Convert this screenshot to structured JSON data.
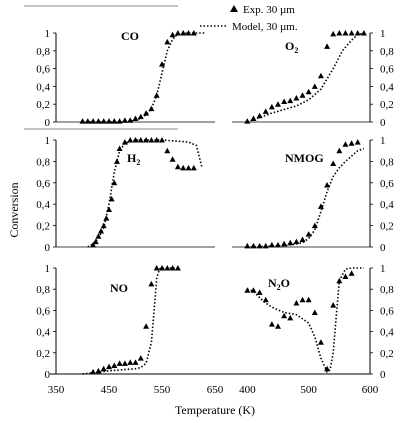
{
  "figure": {
    "y_axis_label": "Conversion",
    "x_axis_label": "Temperature (K)",
    "legend": {
      "exp_label": "Exp. 30 µm",
      "model_label": "Model, 30 µm."
    }
  },
  "chart_data": [
    {
      "type": "scatter",
      "panel": "top-left",
      "title": "CO",
      "xlim": [
        350,
        650
      ],
      "ylim": [
        0,
        1
      ],
      "y_ticks": [
        "0",
        "0,2",
        "0,4",
        "0,6",
        "0,8",
        "1"
      ],
      "series": [
        {
          "name": "Exp. 30 µm",
          "style": "marker-triangle",
          "x": [
            400,
            410,
            420,
            430,
            440,
            450,
            460,
            470,
            480,
            490,
            500,
            510,
            520,
            530,
            540,
            550,
            560,
            570,
            580,
            590,
            600,
            610
          ],
          "y": [
            0.01,
            0.01,
            0.01,
            0.01,
            0.01,
            0.01,
            0.01,
            0.01,
            0.02,
            0.02,
            0.04,
            0.06,
            0.1,
            0.15,
            0.3,
            0.65,
            0.9,
            0.98,
            1.0,
            1.0,
            1.0,
            1.0
          ]
        },
        {
          "name": "Model, 30 µm.",
          "style": "dotted-line",
          "x": [
            400,
            440,
            480,
            500,
            510,
            520,
            530,
            540,
            550,
            560,
            570,
            580,
            600,
            630
          ],
          "y": [
            0.0,
            0.0,
            0.0,
            0.02,
            0.04,
            0.08,
            0.15,
            0.3,
            0.55,
            0.8,
            0.93,
            0.99,
            1.0,
            1.0
          ]
        }
      ]
    },
    {
      "type": "scatter",
      "panel": "top-right",
      "title": "O2",
      "xlim": [
        375,
        600
      ],
      "ylim": [
        0,
        1
      ],
      "y_ticks": [
        "0",
        "0,2",
        "0,4",
        "0,6",
        "0,8",
        "1"
      ],
      "series": [
        {
          "name": "Exp. 30 µm",
          "style": "marker-triangle",
          "x": [
            400,
            410,
            420,
            430,
            440,
            450,
            460,
            470,
            480,
            490,
            500,
            510,
            520,
            530,
            540,
            550,
            560,
            570,
            580,
            590
          ],
          "y": [
            0.01,
            0.04,
            0.07,
            0.12,
            0.17,
            0.2,
            0.23,
            0.24,
            0.27,
            0.3,
            0.34,
            0.4,
            0.52,
            0.85,
            0.99,
            1.0,
            1.0,
            1.0,
            1.0,
            1.0
          ]
        },
        {
          "name": "Model, 30 µm.",
          "style": "dotted-line",
          "x": [
            400,
            420,
            440,
            460,
            480,
            500,
            520,
            540,
            555,
            570,
            580,
            590
          ],
          "y": [
            0.0,
            0.05,
            0.1,
            0.14,
            0.18,
            0.25,
            0.37,
            0.6,
            0.8,
            0.92,
            0.98,
            1.0
          ]
        }
      ]
    },
    {
      "type": "scatter",
      "panel": "middle-left",
      "title": "H2",
      "xlim": [
        350,
        650
      ],
      "ylim": [
        0,
        1
      ],
      "y_ticks": [
        "0",
        "0,2",
        "0,4",
        "0,6",
        "0,8",
        "1"
      ],
      "series": [
        {
          "name": "Exp. 30 µm",
          "style": "marker-triangle",
          "x": [
            420,
            425,
            430,
            435,
            440,
            445,
            450,
            455,
            460,
            465,
            470,
            480,
            490,
            500,
            510,
            520,
            530,
            540,
            550,
            560,
            570,
            580,
            590,
            600,
            610
          ],
          "y": [
            0.02,
            0.05,
            0.1,
            0.15,
            0.2,
            0.27,
            0.35,
            0.45,
            0.6,
            0.8,
            0.92,
            0.98,
            1.0,
            1.0,
            1.0,
            1.0,
            1.0,
            1.0,
            1.0,
            0.9,
            0.82,
            0.75,
            0.74,
            0.74,
            0.74
          ]
        },
        {
          "name": "Model, 30 µm.",
          "style": "dotted-line",
          "x": [
            410,
            420,
            430,
            440,
            450,
            460,
            470,
            480,
            500,
            550,
            600,
            615,
            625
          ],
          "y": [
            0.0,
            0.03,
            0.08,
            0.18,
            0.4,
            0.7,
            0.9,
            0.97,
            1.0,
            1.0,
            0.98,
            0.95,
            0.75
          ]
        }
      ]
    },
    {
      "type": "scatter",
      "panel": "middle-right",
      "title": "NMOG",
      "xlim": [
        375,
        600
      ],
      "ylim": [
        0,
        1
      ],
      "y_ticks": [
        "0",
        "0,2",
        "0,4",
        "0,6",
        "0,8",
        "1"
      ],
      "series": [
        {
          "name": "Exp. 30 µm",
          "style": "marker-triangle",
          "x": [
            400,
            410,
            420,
            430,
            440,
            450,
            460,
            470,
            480,
            490,
            500,
            510,
            520,
            530,
            540,
            550,
            560,
            570,
            580
          ],
          "y": [
            0.01,
            0.01,
            0.01,
            0.01,
            0.02,
            0.02,
            0.03,
            0.04,
            0.05,
            0.07,
            0.12,
            0.2,
            0.38,
            0.58,
            0.78,
            0.9,
            0.96,
            0.97,
            0.98
          ]
        },
        {
          "name": "Model, 30 µm.",
          "style": "dotted-line",
          "x": [
            400,
            460,
            490,
            500,
            510,
            520,
            530,
            540,
            550,
            560,
            570,
            580,
            590
          ],
          "y": [
            0.0,
            0.01,
            0.04,
            0.08,
            0.16,
            0.33,
            0.52,
            0.66,
            0.74,
            0.8,
            0.85,
            0.9,
            0.92
          ]
        }
      ]
    },
    {
      "type": "scatter",
      "panel": "bottom-left",
      "title": "NO",
      "xlim": [
        350,
        650
      ],
      "ylim": [
        0,
        1
      ],
      "y_ticks": [
        "0",
        "0,2",
        "0,4",
        "0,6",
        "0,8",
        "1"
      ],
      "series": [
        {
          "name": "Exp. 30 µm",
          "style": "marker-triangle",
          "x": [
            420,
            430,
            440,
            450,
            460,
            470,
            480,
            490,
            500,
            510,
            520,
            530,
            540,
            550,
            560,
            570,
            580
          ],
          "y": [
            0.02,
            0.03,
            0.05,
            0.07,
            0.08,
            0.1,
            0.1,
            0.11,
            0.11,
            0.15,
            0.45,
            0.85,
            1.0,
            1.0,
            1.0,
            1.0,
            1.0
          ]
        },
        {
          "name": "Model, 30 µm.",
          "style": "dotted-line",
          "x": [
            400,
            450,
            500,
            510,
            520,
            530,
            535,
            540,
            545,
            550,
            560,
            580
          ],
          "y": [
            0.0,
            0.03,
            0.05,
            0.06,
            0.1,
            0.3,
            0.6,
            0.9,
            0.99,
            1.0,
            1.0,
            1.0
          ]
        }
      ]
    },
    {
      "type": "scatter",
      "panel": "bottom-right",
      "title": "N2O",
      "xlim": [
        375,
        600
      ],
      "ylim": [
        0,
        1
      ],
      "y_ticks": [
        "0",
        "0,2",
        "0,4",
        "0,6",
        "0,8",
        "1"
      ],
      "series": [
        {
          "name": "Exp. 30 µm",
          "style": "marker-triangle",
          "x": [
            400,
            410,
            420,
            430,
            440,
            450,
            460,
            470,
            480,
            490,
            500,
            510,
            520,
            530,
            540,
            550,
            560,
            570
          ],
          "y": [
            0.79,
            0.79,
            0.77,
            0.7,
            0.47,
            0.45,
            0.55,
            0.53,
            0.67,
            0.7,
            0.7,
            0.58,
            0.3,
            0.05,
            0.65,
            0.88,
            0.92,
            0.95
          ]
        },
        {
          "name": "Model, 30 µm.",
          "style": "dotted-line",
          "x": [
            400,
            410,
            420,
            430,
            440,
            460,
            480,
            500,
            510,
            520,
            530,
            535,
            540,
            545,
            550,
            560,
            570,
            590
          ],
          "y": [
            0.8,
            0.78,
            0.72,
            0.67,
            0.63,
            0.58,
            0.56,
            0.48,
            0.35,
            0.15,
            0.02,
            0.04,
            0.2,
            0.55,
            0.88,
            0.99,
            1.0,
            1.0
          ]
        }
      ]
    }
  ],
  "x_axes": {
    "left_ticks": [
      350,
      450,
      550,
      650
    ],
    "right_ticks": [
      400,
      500,
      600
    ]
  }
}
